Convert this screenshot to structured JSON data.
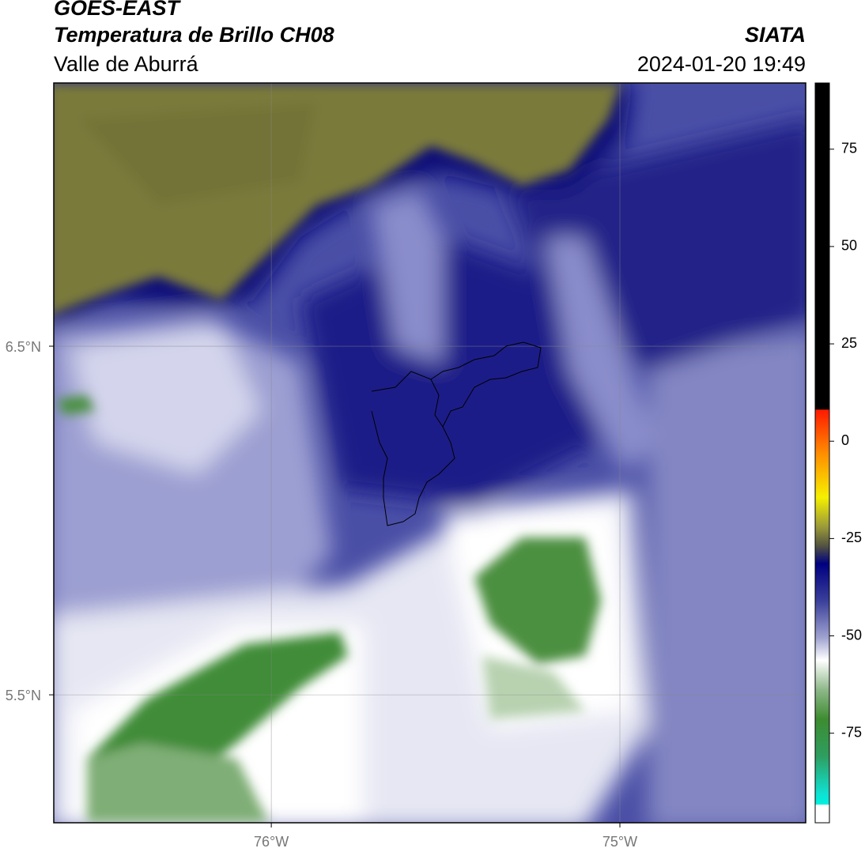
{
  "header": {
    "title": "GOES-EAST",
    "subtitle": "Temperatura de Brillo CH08",
    "region": "Valle de Aburrá",
    "agency": "SIATA",
    "datetime": "2024-01-20 19:49"
  },
  "map": {
    "lat_lim": [
      5.133,
      7.255
    ],
    "lat_ticks": [
      {
        "value": 6.5,
        "label": "6.5°N"
      },
      {
        "value": 5.5,
        "label": "5.5°N"
      }
    ],
    "lon_lim": [
      -76.624,
      -74.467
    ],
    "lon_ticks": [
      {
        "value": -76,
        "label": "76°W"
      },
      {
        "value": -75,
        "label": "75°W"
      }
    ]
  },
  "colorbar": {
    "lim": [
      -98,
      92
    ],
    "ticks": [
      75,
      50,
      25,
      0,
      -25,
      -50,
      -75
    ]
  }
}
